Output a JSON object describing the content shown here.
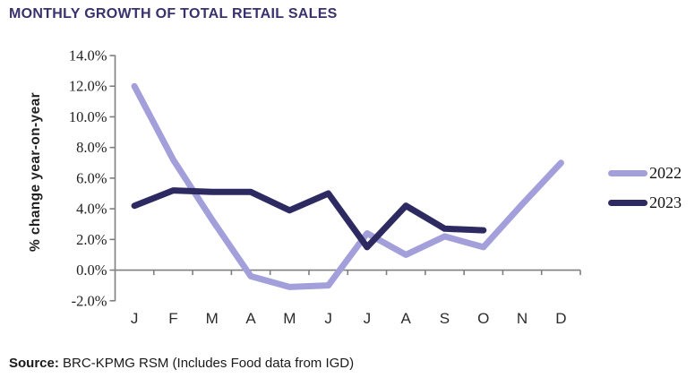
{
  "title": "MONTHLY GROWTH OF TOTAL RETAIL SALES",
  "colors": {
    "series_2022": "#a29fdb",
    "series_2023": "#2d2a62",
    "title": "#38316e",
    "axis": "#7f7f7f",
    "tick_text": "#1f1f1f"
  },
  "chart_data": {
    "type": "line",
    "title": "MONTHLY GROWTH OF TOTAL RETAIL SALES",
    "xlabel": "",
    "ylabel": "% change year-on-year",
    "categories": [
      "J",
      "F",
      "M",
      "A",
      "M",
      "J",
      "J",
      "A",
      "S",
      "O",
      "N",
      "D"
    ],
    "series": [
      {
        "name": "2022",
        "color": "#a29fdb",
        "values": [
          12.0,
          7.2,
          3.3,
          -0.4,
          -1.1,
          -1.0,
          2.4,
          1.0,
          2.2,
          1.5,
          4.3,
          7.0
        ]
      },
      {
        "name": "2023",
        "color": "#2d2a62",
        "values": [
          4.2,
          5.2,
          5.1,
          5.1,
          3.9,
          5.0,
          1.5,
          4.2,
          2.7,
          2.6
        ]
      }
    ],
    "ylim": [
      -2,
      14
    ],
    "ytick_step": 2,
    "ytick_format": "one_decimal_percent",
    "grid": false,
    "legend_position": "right"
  },
  "source": {
    "prefix": "Source:",
    "text": " BRC-KPMG RSM (Includes Food data from IGD)"
  }
}
